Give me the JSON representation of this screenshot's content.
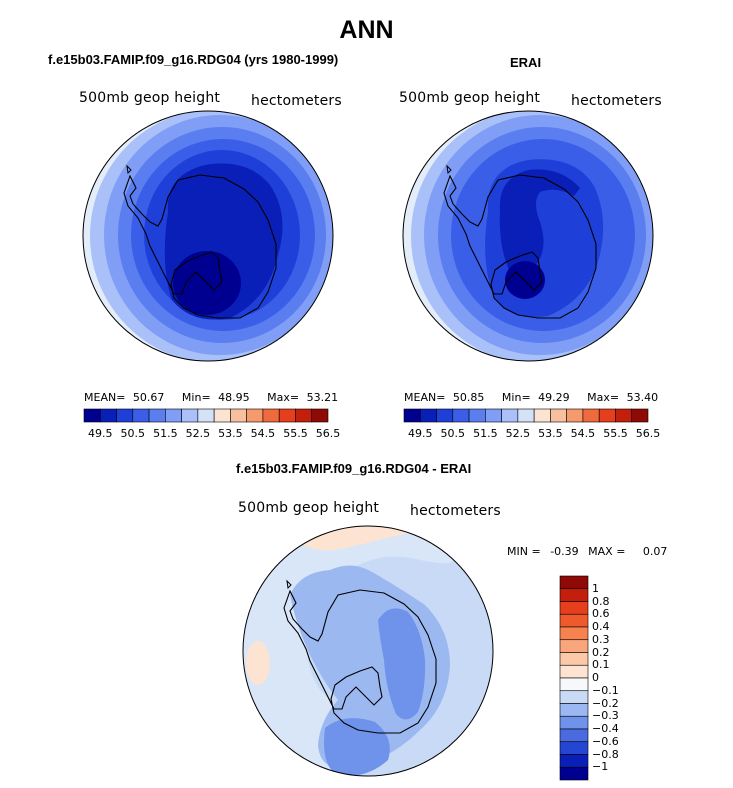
{
  "figure": {
    "title": "ANN",
    "left_panel_title": "f.e15b03.FAMIP.f09_g16.RDG04 (yrs 1980-1999)",
    "right_panel_title": "ERAI",
    "diff_panel_title": "f.e15b03.FAMIP.f09_g16.RDG04 - ERAI",
    "variable_label": "500mb geop height",
    "units_label": "hectometers"
  },
  "chart_data": [
    {
      "type": "heatmap",
      "projection": "south polar stereographic",
      "title": "f.e15b03.FAMIP.f09_g16.RDG04 (yrs 1980-1999)",
      "variable": "500mb geop height",
      "units": "hectometers",
      "stats": {
        "mean_label": "MEAN=",
        "mean": "50.67",
        "min_label": "Min=",
        "min": "48.95",
        "max_label": "Max=",
        "max": "53.21"
      },
      "colorbar": {
        "orientation": "horizontal",
        "tick_labels": [
          "49.5",
          "50.5",
          "51.5",
          "52.5",
          "53.5",
          "54.5",
          "55.5",
          "56.5"
        ],
        "colors": [
          "#000090",
          "#0a1fb8",
          "#1e3fd8",
          "#3a5ee8",
          "#5a7ef0",
          "#809ef5",
          "#a9c0f8",
          "#d4e2f7",
          "#fde3d2",
          "#f9c0a0",
          "#f6996d",
          "#ef6a3c",
          "#e53f1d",
          "#c31f0c",
          "#8f0a06"
        ]
      }
    },
    {
      "type": "heatmap",
      "projection": "south polar stereographic",
      "title": "ERAI",
      "variable": "500mb geop height",
      "units": "hectometers",
      "stats": {
        "mean_label": "MEAN=",
        "mean": "50.85",
        "min_label": "Min=",
        "min": "49.29",
        "max_label": "Max=",
        "max": "53.40"
      },
      "colorbar": {
        "orientation": "horizontal",
        "tick_labels": [
          "49.5",
          "50.5",
          "51.5",
          "52.5",
          "53.5",
          "54.5",
          "55.5",
          "56.5"
        ],
        "colors": [
          "#000090",
          "#0a1fb8",
          "#1e3fd8",
          "#3a5ee8",
          "#5a7ef0",
          "#809ef5",
          "#a9c0f8",
          "#d4e2f7",
          "#fde3d2",
          "#f9c0a0",
          "#f6996d",
          "#ef6a3c",
          "#e53f1d",
          "#c31f0c",
          "#8f0a06"
        ]
      }
    },
    {
      "type": "heatmap",
      "projection": "south polar stereographic",
      "title": "f.e15b03.FAMIP.f09_g16.RDG04 - ERAI",
      "variable": "500mb geop height",
      "units": "hectometers",
      "stats": {
        "min_label": "MIN =",
        "min": "-0.39",
        "max_label": "MAX =",
        "max": "0.07"
      },
      "colorbar": {
        "orientation": "vertical",
        "tick_labels": [
          "1",
          "0.8",
          "0.6",
          "0.4",
          "0.3",
          "0.2",
          "0.1",
          "0",
          "−0.1",
          "−0.2",
          "−0.3",
          "−0.4",
          "−0.6",
          "−0.8",
          "−1"
        ],
        "colors": [
          "#8f0a06",
          "#c31f0c",
          "#e53f1d",
          "#ef5a2c",
          "#f6834f",
          "#f9a67c",
          "#fbc8a8",
          "#fde3d2",
          "#f6f8fc",
          "#c9daf6",
          "#9bb8f1",
          "#6f92ea",
          "#4a6be0",
          "#2545d3",
          "#0a1fb8",
          "#000090"
        ]
      }
    }
  ]
}
